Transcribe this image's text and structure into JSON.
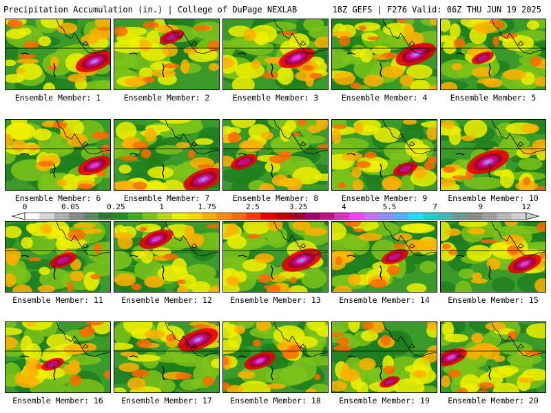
{
  "header": {
    "title_left": "Precipitation Accumulation (in.) | College of DuPage NEXLAB",
    "title_right": "18Z GEFS | F276 Valid: 06Z THU JUN 19 2025"
  },
  "members": [
    {
      "label": "Ensemble Member: 1",
      "hotspot": [
        0.85,
        0.6
      ],
      "intensity": 0.85
    },
    {
      "label": "Ensemble Member: 2",
      "hotspot": [
        0.55,
        0.25
      ],
      "intensity": 0.55
    },
    {
      "label": "Ensemble Member: 3",
      "hotspot": [
        0.7,
        0.55
      ],
      "intensity": 0.8
    },
    {
      "label": "Ensemble Member: 4",
      "hotspot": [
        0.8,
        0.5
      ],
      "intensity": 0.9
    },
    {
      "label": "Ensemble Member: 5",
      "hotspot": [
        0.4,
        0.55
      ],
      "intensity": 0.5
    },
    {
      "label": "Ensemble Member: 6",
      "hotspot": [
        0.85,
        0.65
      ],
      "intensity": 0.75
    },
    {
      "label": "Ensemble Member: 7",
      "hotspot": [
        0.85,
        0.85
      ],
      "intensity": 0.9
    },
    {
      "label": "Ensemble Member: 8",
      "hotspot": [
        0.2,
        0.6
      ],
      "intensity": 0.6
    },
    {
      "label": "Ensemble Member: 9",
      "hotspot": [
        0.7,
        0.7
      ],
      "intensity": 0.55
    },
    {
      "label": "Ensemble Member: 10",
      "hotspot": [
        0.45,
        0.6
      ],
      "intensity": 0.95
    },
    {
      "label": "Ensemble Member: 11",
      "hotspot": [
        0.55,
        0.55
      ],
      "intensity": 0.6
    },
    {
      "label": "Ensemble Member: 12",
      "hotspot": [
        0.4,
        0.25
      ],
      "intensity": 0.75
    },
    {
      "label": "Ensemble Member: 13",
      "hotspot": [
        0.75,
        0.55
      ],
      "intensity": 0.9
    },
    {
      "label": "Ensemble Member: 14",
      "hotspot": [
        0.6,
        0.5
      ],
      "intensity": 0.6
    },
    {
      "label": "Ensemble Member: 15",
      "hotspot": [
        0.8,
        0.6
      ],
      "intensity": 0.75
    },
    {
      "label": "Ensemble Member: 16",
      "hotspot": [
        0.45,
        0.6
      ],
      "intensity": 0.5
    },
    {
      "label": "Ensemble Member: 17",
      "hotspot": [
        0.8,
        0.25
      ],
      "intensity": 0.9
    },
    {
      "label": "Ensemble Member: 18",
      "hotspot": [
        0.35,
        0.55
      ],
      "intensity": 0.7
    },
    {
      "label": "Ensemble Member: 19",
      "hotspot": [
        0.55,
        0.85
      ],
      "intensity": 0.45
    },
    {
      "label": "Ensemble Member: 20",
      "hotspot": [
        0.1,
        0.5
      ],
      "intensity": 0.7
    }
  ],
  "colorbar": {
    "labels": [
      "0",
      "0.05",
      "0.25",
      "1",
      "1.75",
      "2.5",
      "3.25",
      "4",
      "5.5",
      "7",
      "9",
      "12"
    ],
    "colors": [
      "#ffffff",
      "#d6d6d6",
      "#b0b0b0",
      "#8a8a8a",
      "#5e8a5e",
      "#2f7a2f",
      "#1f8f1f",
      "#3fae1f",
      "#7cc31a",
      "#b8d81a",
      "#f0f000",
      "#ffd700",
      "#ffb000",
      "#ff8c00",
      "#ff6a00",
      "#ff3a00",
      "#e60000",
      "#c00000",
      "#a00028",
      "#a0006e",
      "#c0108c",
      "#e030c0",
      "#ff40ff",
      "#c870ff",
      "#9090ff",
      "#50b0ff",
      "#20e0ff",
      "#20d0d0",
      "#40b8b8",
      "#6a9a9a",
      "#8a8a8a",
      "#a0a0a0",
      "#b8b8b8",
      "#d0d0d0"
    ]
  }
}
